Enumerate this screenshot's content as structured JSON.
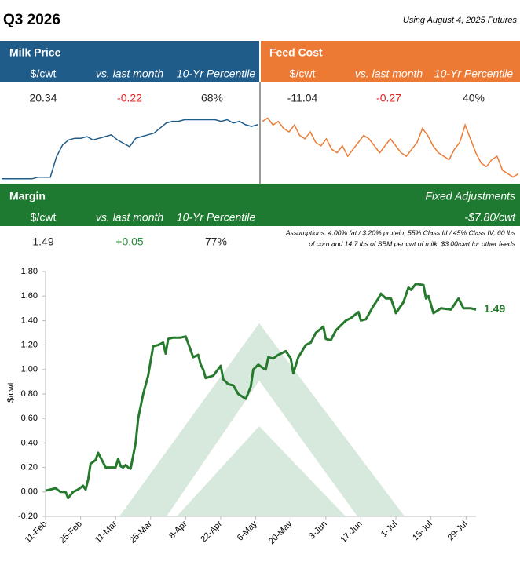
{
  "header": {
    "title": "Q3 2026",
    "subtitle": "Using August 4, 2025 Futures"
  },
  "panels": [
    {
      "title": "Milk Price",
      "columns": [
        "$/cwt",
        "vs. last month",
        "10-Yr Percentile"
      ],
      "values": [
        "20.34",
        "-0.22",
        "68%"
      ]
    },
    {
      "title": "Feed Cost",
      "columns": [
        "$/cwt",
        "vs. last month",
        "10-Yr Percentile"
      ],
      "values": [
        "-11.04",
        "-0.27",
        "40%"
      ]
    },
    {
      "title": "Margin",
      "columns": [
        "$/cwt",
        "vs. last month",
        "10-Yr Percentile"
      ],
      "values": [
        "1.49",
        "+0.05",
        "77%"
      ],
      "adjustments_title": "Fixed Adjustments",
      "adjustments": "-$7.80/cwt",
      "assumptions": [
        "Assumptions: 4.00% fat / 3.20% protein; 55% Class III / 45% Class IV; 60 lbs",
        "of corn and 14.7 lbs of SBM per cwt of milk; $3.00/cwt for other feeds"
      ]
    }
  ],
  "chart_data": [
    {
      "type": "line",
      "y_label": "$/cwt",
      "color": "#267a2d",
      "end_label": true,
      "x": [
        0,
        2,
        4,
        6,
        8,
        9,
        11,
        13,
        15,
        16,
        17,
        18,
        20,
        21,
        22,
        24,
        26,
        28,
        29,
        30,
        31,
        32,
        33,
        34,
        36,
        37,
        39,
        41,
        43,
        45,
        47,
        48,
        49,
        51,
        54,
        56,
        59,
        61,
        62,
        63,
        64,
        67,
        70,
        71,
        73,
        75,
        77,
        80,
        82,
        83,
        85,
        87,
        88,
        89,
        91,
        93,
        96,
        98,
        99,
        101,
        104,
        106,
        108,
        111,
        112,
        114,
        116,
        118,
        120,
        122,
        125,
        126,
        128,
        131,
        133,
        134,
        136,
        138,
        140,
        143,
        145,
        146,
        148,
        151,
        152,
        153,
        155,
        158,
        162,
        165,
        167,
        170,
        172
      ],
      "values": [
        0.01,
        0.02,
        0.03,
        0.0,
        0.0,
        -0.05,
        0.0,
        0.02,
        0.05,
        0.02,
        0.1,
        0.23,
        0.26,
        0.32,
        0.28,
        0.2,
        0.2,
        0.2,
        0.27,
        0.21,
        0.2,
        0.22,
        0.2,
        0.19,
        0.4,
        0.6,
        0.8,
        0.95,
        1.19,
        1.2,
        1.22,
        1.13,
        1.25,
        1.26,
        1.26,
        1.27,
        1.1,
        1.12,
        1.04,
        1.0,
        0.93,
        0.95,
        1.03,
        0.92,
        0.88,
        0.87,
        0.8,
        0.76,
        0.86,
        1.0,
        1.04,
        1.01,
        1.0,
        1.1,
        1.09,
        1.12,
        1.15,
        1.09,
        0.97,
        1.1,
        1.2,
        1.22,
        1.3,
        1.35,
        1.25,
        1.24,
        1.32,
        1.36,
        1.4,
        1.42,
        1.47,
        1.4,
        1.41,
        1.52,
        1.58,
        1.62,
        1.58,
        1.58,
        1.46,
        1.55,
        1.67,
        1.65,
        1.7,
        1.69,
        1.58,
        1.6,
        1.46,
        1.5,
        1.49,
        1.58,
        1.5,
        1.5,
        1.49
      ],
      "xlim": [
        0,
        172
      ],
      "xticks": [
        {
          "value": 0,
          "label": "11-Feb"
        },
        {
          "value": 14,
          "label": "25-Feb"
        },
        {
          "value": 28,
          "label": "11-Mar"
        },
        {
          "value": 42,
          "label": "25-Mar"
        },
        {
          "value": 56,
          "label": "8-Apr"
        },
        {
          "value": 70,
          "label": "22-Apr"
        },
        {
          "value": 84,
          "label": "6-May"
        },
        {
          "value": 98,
          "label": "20-May"
        },
        {
          "value": 112,
          "label": "3-Jun"
        },
        {
          "value": 126,
          "label": "17-Jun"
        },
        {
          "value": 140,
          "label": "1-Jul"
        },
        {
          "value": 154,
          "label": "15-Jul"
        },
        {
          "value": 168,
          "label": "29-Jul"
        }
      ],
      "ylim": [
        -0.2,
        1.8
      ],
      "yticks": [
        {
          "value": -0.2,
          "label": "-0.20"
        },
        {
          "value": 0,
          "label": "0.00"
        },
        {
          "value": 0.2,
          "label": "0.20"
        },
        {
          "value": 0.4,
          "label": "0.40"
        },
        {
          "value": 0.6,
          "label": "0.60"
        },
        {
          "value": 0.8,
          "label": "0.80"
        },
        {
          "value": 1.0,
          "label": "1.00"
        },
        {
          "value": 1.2,
          "label": "1.20"
        },
        {
          "value": 1.4,
          "label": "1.40"
        },
        {
          "value": 1.6,
          "label": "1.60"
        },
        {
          "value": 1.8,
          "label": "1.80"
        }
      ]
    },
    {
      "type": "sparkline",
      "color": "#1f5c8a",
      "ylim": [
        16.9,
        20.8
      ],
      "values": [
        17.0,
        17.0,
        17.0,
        17.0,
        17.0,
        17.0,
        17.1,
        17.1,
        17.1,
        18.3,
        19.0,
        19.3,
        19.4,
        19.4,
        19.5,
        19.3,
        19.4,
        19.5,
        19.6,
        19.3,
        19.1,
        18.9,
        19.4,
        19.5,
        19.6,
        19.7,
        20.0,
        20.3,
        20.4,
        20.4,
        20.5,
        20.5,
        20.5,
        20.5,
        20.5,
        20.5,
        20.4,
        20.5,
        20.3,
        20.4,
        20.2,
        20.1,
        20.2
      ]
    },
    {
      "type": "sparkline",
      "color": "#ec7a35",
      "ylim": [
        -11.1,
        -10.15
      ],
      "values": [
        -10.25,
        -10.2,
        -10.3,
        -10.25,
        -10.35,
        -10.4,
        -10.3,
        -10.45,
        -10.5,
        -10.4,
        -10.55,
        -10.6,
        -10.5,
        -10.65,
        -10.7,
        -10.6,
        -10.75,
        -10.65,
        -10.55,
        -10.45,
        -10.5,
        -10.6,
        -10.7,
        -10.6,
        -10.5,
        -10.6,
        -10.7,
        -10.75,
        -10.65,
        -10.55,
        -10.35,
        -10.45,
        -10.6,
        -10.7,
        -10.75,
        -10.8,
        -10.65,
        -10.55,
        -10.3,
        -10.5,
        -10.7,
        -10.85,
        -10.9,
        -10.8,
        -10.75,
        -10.95,
        -11.0,
        -11.05,
        -11.0
      ]
    }
  ]
}
